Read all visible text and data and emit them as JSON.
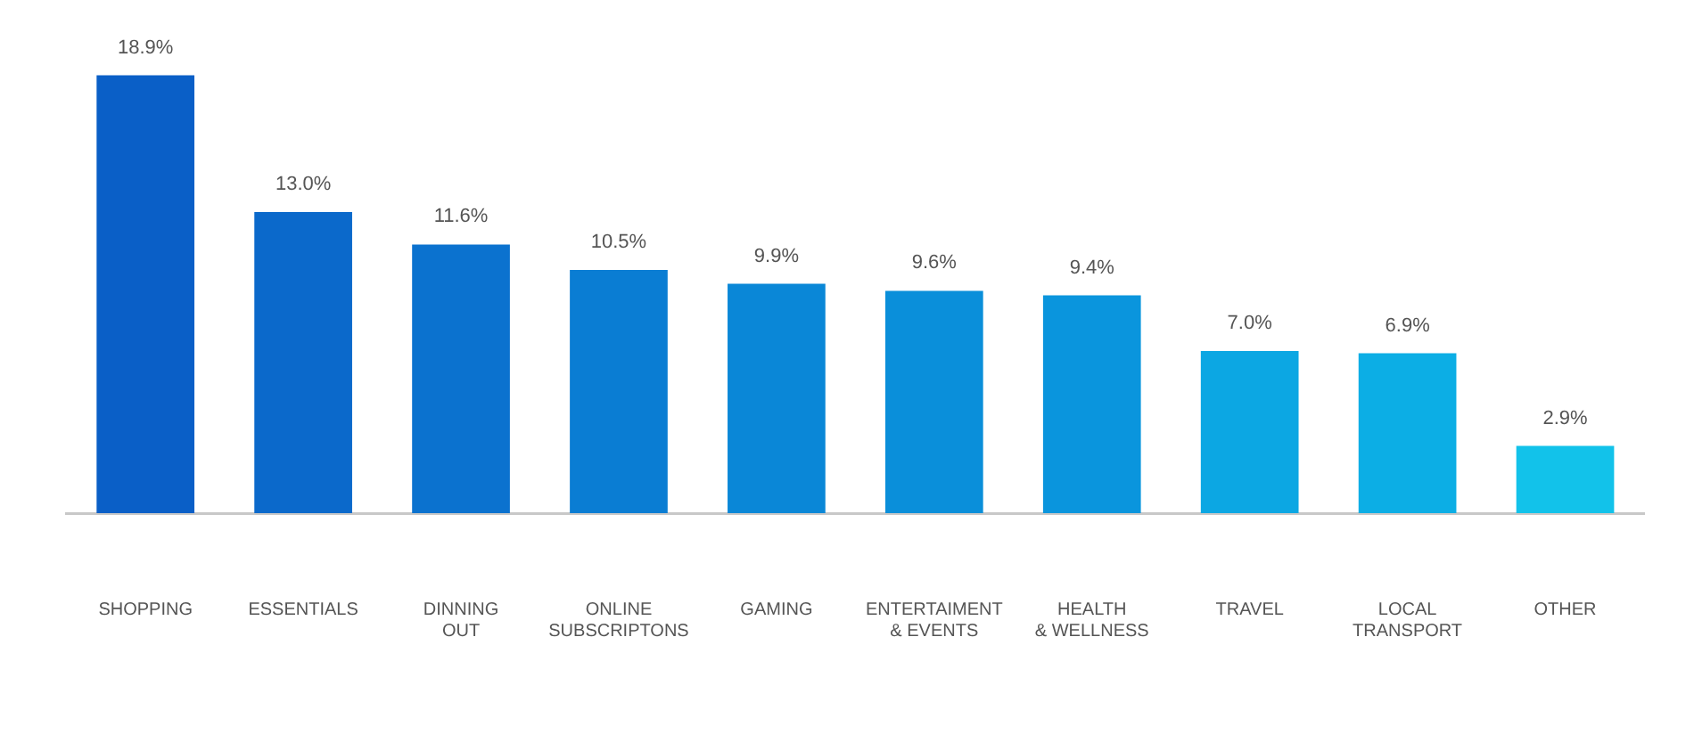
{
  "chart_data": {
    "type": "bar",
    "categories": [
      "SHOPPING",
      "ESSENTIALS",
      "DINNING OUT",
      "ONLINE SUBSCRIPTONS",
      "GAMING",
      "ENTERTAIMENT & EVENTS",
      "HEALTH & WELLNESS",
      "TRAVEL",
      "LOCAL TRANSPORT",
      "OTHER"
    ],
    "values": [
      18.9,
      13.0,
      11.6,
      10.5,
      9.9,
      9.6,
      9.4,
      7.0,
      6.9,
      2.9
    ],
    "value_labels": [
      "18.9%",
      "13.0%",
      "11.6%",
      "10.5%",
      "9.9%",
      "9.6%",
      "9.4%",
      "7.0%",
      "6.9%",
      "2.9%"
    ],
    "colors": [
      "#0a5fc7",
      "#0b69cb",
      "#0b72cf",
      "#0a7dd3",
      "#0a87d7",
      "#0a8fda",
      "#0a95dd",
      "#0ca7e3",
      "#0caee5",
      "#12c2ea"
    ],
    "grid": false,
    "legend": false
  }
}
